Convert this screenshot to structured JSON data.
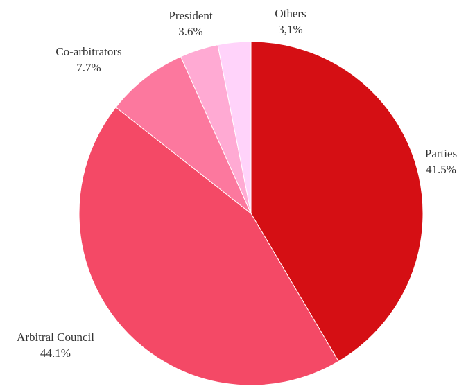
{
  "chart_data": {
    "type": "pie",
    "title": "",
    "start_angle": "12 o'clock",
    "direction": "clockwise",
    "slices": [
      {
        "name": "Parties",
        "value": 41.5,
        "value_label": "41.5%",
        "color": "#d50f14"
      },
      {
        "name": "Arbitral Council",
        "value": 44.1,
        "value_label": "44.1%",
        "color": "#f44966"
      },
      {
        "name": "Co-arbitrators",
        "value": 7.7,
        "value_label": "7.7%",
        "color": "#fc789e"
      },
      {
        "name": "President",
        "value": 3.6,
        "value_label": "3.6%",
        "color": "#ffaad3"
      },
      {
        "name": "Others",
        "value": 3.1,
        "value_label": "3,1%",
        "color": "#ffd3fa"
      }
    ]
  }
}
